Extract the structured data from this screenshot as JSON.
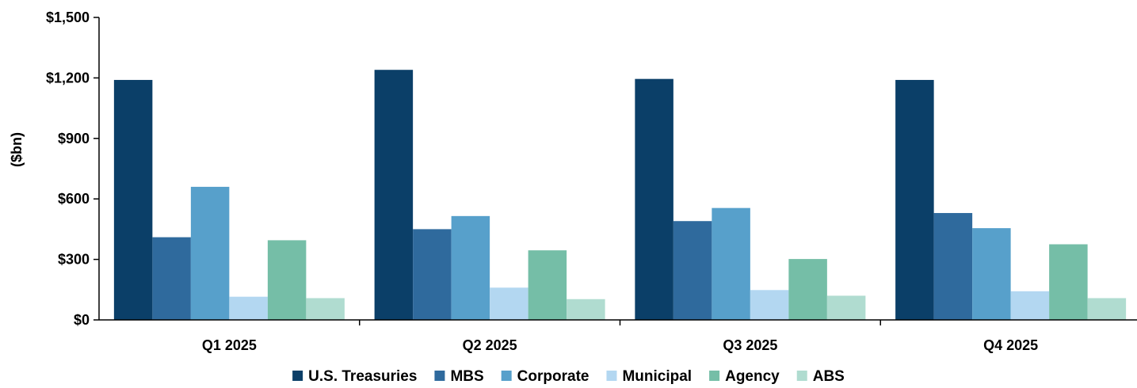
{
  "chart_data": {
    "type": "bar",
    "title": "",
    "xlabel": "",
    "ylabel": "($bn)",
    "ylim": [
      0,
      1500
    ],
    "y_ticks": [
      0,
      300,
      600,
      900,
      1200,
      1500
    ],
    "y_tick_labels": [
      "$0",
      "$300",
      "$600",
      "$900",
      "$1,200",
      "$1,500"
    ],
    "grid": false,
    "legend_position": "bottom",
    "categories": [
      "Q1 2025",
      "Q2 2025",
      "Q3 2025",
      "Q4 2025"
    ],
    "series": [
      {
        "name": "U.S. Treasuries",
        "color": "#0B3F68",
        "values": [
          1190,
          1240,
          1195,
          1190
        ]
      },
      {
        "name": "MBS",
        "color": "#2F6A9D",
        "values": [
          410,
          450,
          490,
          530
        ]
      },
      {
        "name": "Corporate",
        "color": "#57A0CB",
        "values": [
          660,
          515,
          555,
          455
        ]
      },
      {
        "name": "Municipal",
        "color": "#B3D7F1",
        "values": [
          115,
          160,
          148,
          142
        ]
      },
      {
        "name": "Agency",
        "color": "#75BEA7",
        "values": [
          395,
          345,
          302,
          375
        ]
      },
      {
        "name": "ABS",
        "color": "#B0DCD0",
        "values": [
          108,
          103,
          120,
          108
        ]
      }
    ]
  }
}
